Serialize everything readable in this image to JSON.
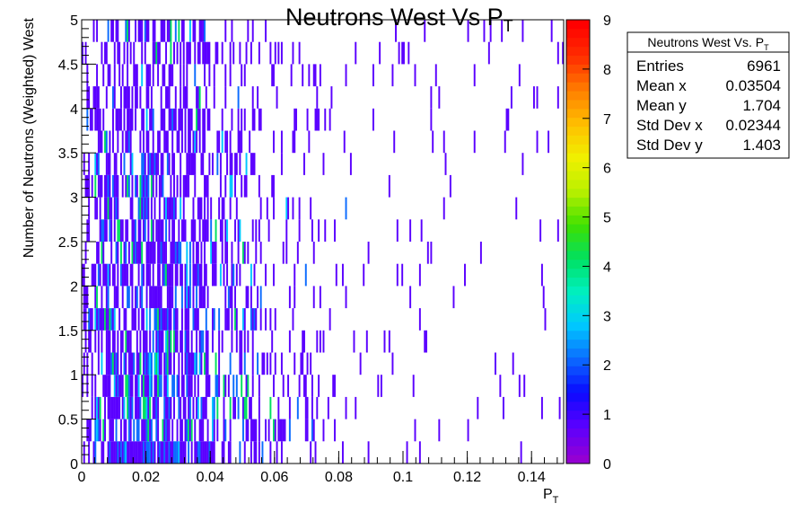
{
  "chart_data": {
    "type": "heatmap",
    "title": "Neutrons West Vs P",
    "title_sub": "T",
    "xlabel": "P",
    "xlabel_sub": "T",
    "ylabel": "Number of Neutrons (Weighted) West",
    "xlim": [
      0,
      0.15
    ],
    "ylim": [
      0,
      5
    ],
    "x_ticks": [
      "0",
      "0.02",
      "0.04",
      "0.06",
      "0.08",
      "0.1",
      "0.12",
      "0.14"
    ],
    "y_ticks": [
      "0",
      "0.5",
      "1",
      "1.5",
      "2",
      "2.5",
      "3",
      "3.5",
      "4",
      "4.5",
      "5"
    ],
    "colorbar": {
      "min": 0,
      "max": 9,
      "ticks": [
        "0",
        "1",
        "2",
        "3",
        "4",
        "5",
        "6",
        "7",
        "8",
        "9"
      ],
      "palette": [
        "#9400d3",
        "#5a00ff",
        "#0a0aff",
        "#0b6bff",
        "#00c8ff",
        "#00f0c0",
        "#00e060",
        "#40e000",
        "#b8f000",
        "#f0f000",
        "#ffc000",
        "#ff8000",
        "#ff3000",
        "#ff0000"
      ]
    },
    "stats": {
      "title": "Neutrons West Vs. P",
      "title_sub": "T",
      "rows": [
        {
          "label": "Entries",
          "value": "6961"
        },
        {
          "label": "Mean x",
          "value": "0.03504"
        },
        {
          "label": "Mean y",
          "value": "1.704"
        },
        {
          "label": "Std Dev x",
          "value": "0.02344"
        },
        {
          "label": "Std Dev y",
          "value": "1.403"
        }
      ]
    },
    "bins": {
      "x_count": 300,
      "y_count": 20,
      "x_width": 0.0005,
      "y_width": 0.25
    },
    "entries": 6961,
    "mean_x": 0.03504,
    "mean_y": 1.704,
    "std_x": 0.02344,
    "std_y": 1.403
  }
}
